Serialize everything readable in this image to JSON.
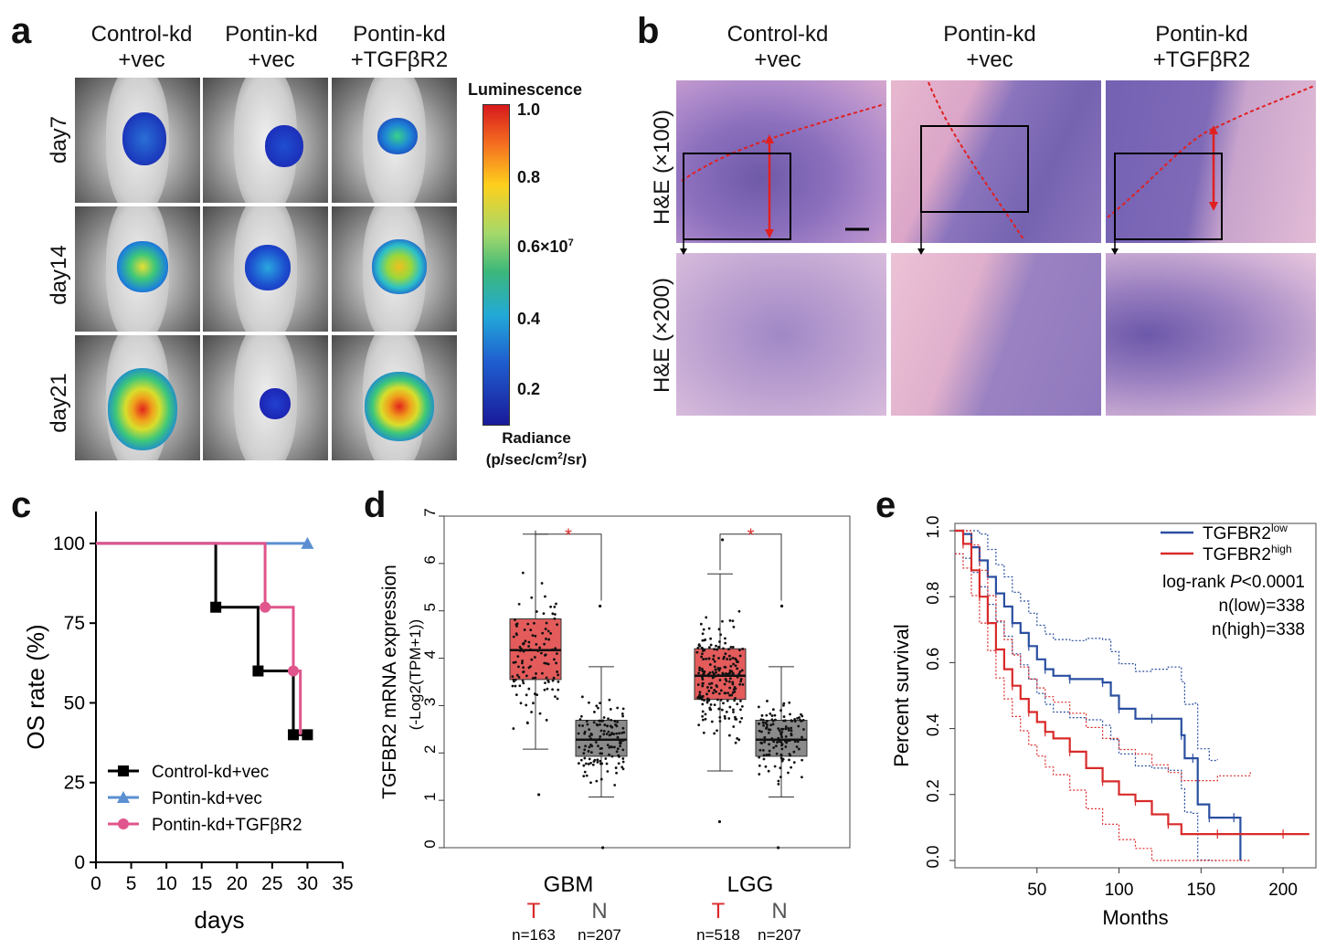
{
  "panel_a": {
    "letter": "a",
    "columns": [
      [
        "Control-kd",
        "+vec"
      ],
      [
        "Pontin-kd",
        "+vec"
      ],
      [
        "Pontin-kd",
        "+TGFβR2"
      ]
    ],
    "rows": [
      "day7",
      "day14",
      "day21"
    ],
    "colorbar": {
      "title": "Luminescence",
      "ticks": [
        "1.0",
        "0.8",
        "0.6",
        "0.4",
        "0.2"
      ],
      "multiplier": "×10",
      "exponent": "7",
      "unit_title": "Radiance",
      "unit_prefix": "(p/sec/cm",
      "unit_exp": "2",
      "unit_suffix": "/sr)"
    }
  },
  "panel_b": {
    "letter": "b",
    "columns": [
      [
        "Control-kd",
        "+vec"
      ],
      [
        "Pontin-kd",
        "+vec"
      ],
      [
        "Pontin-kd",
        "+TGFβR2"
      ]
    ],
    "rows": [
      "H&E (×100)",
      "H&E (×200)"
    ]
  },
  "panel_c": {
    "letter": "c"
  },
  "panel_d": {
    "letter": "d",
    "groups": [
      {
        "name": "GBM",
        "t_label": "T",
        "n_label": "N",
        "t_n": "n=163",
        "n_n": "n=207"
      },
      {
        "name": "LGG",
        "t_label": "T",
        "n_label": "N",
        "t_n": "n=518",
        "n_n": "n=207"
      }
    ]
  },
  "panel_e": {
    "letter": "e"
  },
  "chart_data": [
    {
      "id": "c",
      "type": "line",
      "subtype": "kaplan-meier step",
      "xlabel": "days",
      "ylabel": "OS rate (%)",
      "xlim": [
        0,
        35
      ],
      "ylim": [
        0,
        110
      ],
      "xticks": [
        "0",
        "5",
        "10",
        "15",
        "20",
        "25",
        "30",
        "35"
      ],
      "yticks": [
        "0",
        "25",
        "50",
        "75",
        "100"
      ],
      "legend_position": "bottom-left",
      "series": [
        {
          "name": "Control-kd+vec",
          "color": "#000000",
          "marker": "square",
          "points": [
            [
              0,
              100
            ],
            [
              17,
              100
            ],
            [
              17,
              80
            ],
            [
              23,
              80
            ],
            [
              23,
              60
            ],
            [
              28,
              60
            ],
            [
              28,
              40
            ],
            [
              30,
              40
            ]
          ],
          "markers": [
            [
              17,
              80
            ],
            [
              23,
              60
            ],
            [
              28,
              40
            ],
            [
              30,
              40
            ]
          ]
        },
        {
          "name": "Pontin-kd+vec",
          "color": "#5b8fd1",
          "marker": "triangle",
          "points": [
            [
              0,
              100
            ],
            [
              30,
              100
            ]
          ],
          "markers": [
            [
              30,
              100
            ]
          ]
        },
        {
          "name": "Pontin-kd+TGFβR2",
          "color": "#e0558c",
          "marker": "circle",
          "points": [
            [
              0,
              100
            ],
            [
              24,
              100
            ],
            [
              24,
              80
            ],
            [
              28,
              80
            ],
            [
              28,
              60
            ],
            [
              29,
              60
            ],
            [
              29,
              40
            ]
          ],
          "markers": [
            [
              24,
              80
            ],
            [
              28,
              60
            ]
          ]
        }
      ]
    },
    {
      "id": "d",
      "type": "box",
      "ylabel": "TGFBR2 mRNA expression",
      "ylabel2": "(-Log2(TPM+1))",
      "ylim": [
        0,
        7
      ],
      "yticks": [
        "0",
        "1",
        "2",
        "3",
        "4",
        "5",
        "6",
        "7"
      ],
      "categories": [
        "GBM T",
        "GBM N",
        "LGG T",
        "LGG N"
      ],
      "boxes": [
        {
          "group": "GBM",
          "sample": "T",
          "color": "#e35b5b",
          "q1": 3.55,
          "median": 4.17,
          "q3": 4.83,
          "whisker_low": 2.08,
          "whisker_high": 6.62,
          "outliers": [
            1.12
          ]
        },
        {
          "group": "GBM",
          "sample": "N",
          "color": "#8a8a8a",
          "q1": 1.93,
          "median": 2.28,
          "q3": 2.69,
          "whisker_low": 1.07,
          "whisker_high": 3.82,
          "outliers": [
            5.1,
            0.0
          ]
        },
        {
          "group": "LGG",
          "sample": "T",
          "color": "#e35b5b",
          "q1": 3.13,
          "median": 3.63,
          "q3": 4.2,
          "whisker_low": 1.62,
          "whisker_high": 5.78,
          "outliers": [
            0.55,
            6.5
          ]
        },
        {
          "group": "LGG",
          "sample": "N",
          "color": "#8a8a8a",
          "q1": 1.93,
          "median": 2.28,
          "q3": 2.69,
          "whisker_low": 1.07,
          "whisker_high": 3.82,
          "outliers": [
            5.1,
            0.0
          ]
        }
      ],
      "significance": [
        "*",
        "*"
      ]
    },
    {
      "id": "e",
      "type": "line",
      "subtype": "kaplan-meier step",
      "xlabel": "Months",
      "ylabel": "Percent survival",
      "xlim": [
        0,
        220
      ],
      "ylim": [
        0,
        1.0
      ],
      "xticks": [
        "50",
        "100",
        "150",
        "200"
      ],
      "yticks": [
        "0.0",
        "0.2",
        "0.4",
        "0.6",
        "0.8",
        "1.0"
      ],
      "legend": {
        "low_base": "TGFBR2",
        "low_sup": "low",
        "high_base": "TGFBR2",
        "high_sup": "high",
        "test_prefix": "log-rank ",
        "test_italic": "P",
        "test_suffix": "<0.0001",
        "n_low": "n(low)=338",
        "n_high": "n(high)=338"
      },
      "series": [
        {
          "name": "TGFBR2 low",
          "color": "#2a4fa0",
          "points": [
            [
              0,
              1.0
            ],
            [
              5,
              0.99
            ],
            [
              10,
              0.95
            ],
            [
              15,
              0.91
            ],
            [
              20,
              0.86
            ],
            [
              25,
              0.81
            ],
            [
              30,
              0.77
            ],
            [
              35,
              0.72
            ],
            [
              40,
              0.69
            ],
            [
              45,
              0.65
            ],
            [
              50,
              0.61
            ],
            [
              55,
              0.58
            ],
            [
              60,
              0.56
            ],
            [
              70,
              0.55
            ],
            [
              80,
              0.55
            ],
            [
              90,
              0.54
            ],
            [
              95,
              0.5
            ],
            [
              100,
              0.46
            ],
            [
              110,
              0.43
            ],
            [
              120,
              0.43
            ],
            [
              130,
              0.43
            ],
            [
              138,
              0.38
            ],
            [
              140,
              0.31
            ],
            [
              145,
              0.31
            ],
            [
              148,
              0.17
            ],
            [
              155,
              0.13
            ],
            [
              160,
              0.13
            ],
            [
              170,
              0.13
            ],
            [
              174,
              0.0
            ]
          ]
        },
        {
          "name": "TGFBR2 high",
          "color": "#d92a2a",
          "points": [
            [
              0,
              1.0
            ],
            [
              5,
              0.96
            ],
            [
              10,
              0.88
            ],
            [
              15,
              0.8
            ],
            [
              20,
              0.72
            ],
            [
              25,
              0.64
            ],
            [
              30,
              0.58
            ],
            [
              35,
              0.53
            ],
            [
              40,
              0.49
            ],
            [
              45,
              0.45
            ],
            [
              50,
              0.42
            ],
            [
              55,
              0.39
            ],
            [
              60,
              0.37
            ],
            [
              70,
              0.33
            ],
            [
              80,
              0.28
            ],
            [
              90,
              0.24
            ],
            [
              100,
              0.2
            ],
            [
              110,
              0.18
            ],
            [
              120,
              0.14
            ],
            [
              130,
              0.11
            ],
            [
              138,
              0.08
            ],
            [
              160,
              0.08
            ],
            [
              180,
              0.08
            ],
            [
              200,
              0.08
            ],
            [
              216,
              0.08
            ]
          ]
        }
      ]
    }
  ]
}
